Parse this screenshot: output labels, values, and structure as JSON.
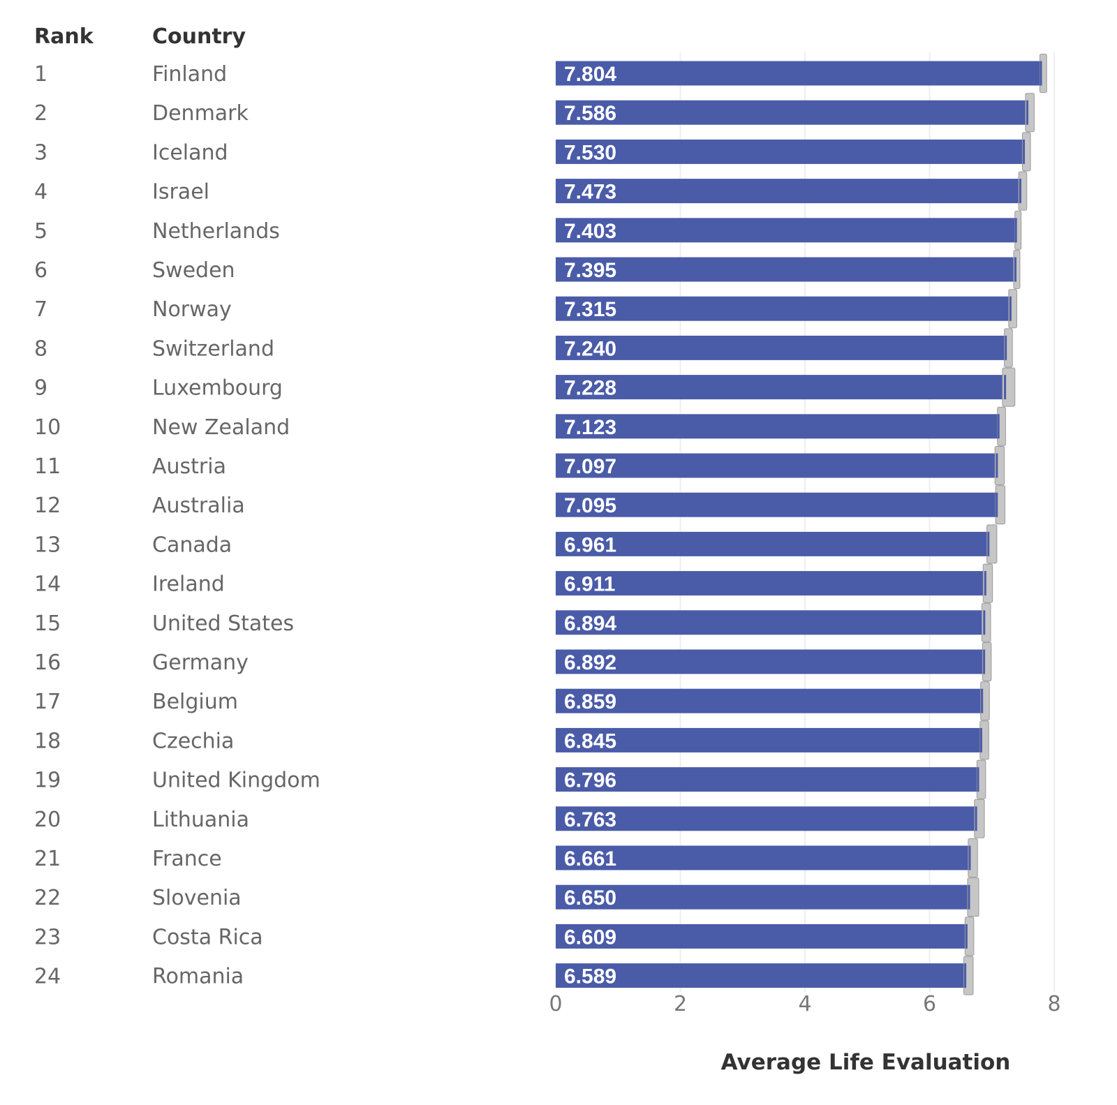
{
  "colors": {
    "bar": "#4a5ba8",
    "interval": "#c6c6c6",
    "text": "#666666",
    "header": "#333333"
  },
  "table": {
    "rank_header": "Rank",
    "country_header": "Country"
  },
  "chart_data": {
    "type": "bar",
    "orientation": "horizontal",
    "xlabel": "Average Life Evaluation",
    "xlim": [
      0,
      8
    ],
    "xticks": [
      0,
      2,
      4,
      6,
      8
    ],
    "grid": true,
    "ranks": [
      "1",
      "2",
      "3",
      "4",
      "5",
      "6",
      "7",
      "8",
      "9",
      "10",
      "11",
      "12",
      "13",
      "14",
      "15",
      "16",
      "17",
      "18",
      "19",
      "20",
      "21",
      "22",
      "23",
      "24"
    ],
    "categories": [
      "Finland",
      "Denmark",
      "Iceland",
      "Israel",
      "Netherlands",
      "Sweden",
      "Norway",
      "Switzerland",
      "Luxembourg",
      "New Zealand",
      "Austria",
      "Australia",
      "Canada",
      "Ireland",
      "United States",
      "Germany",
      "Belgium",
      "Czechia",
      "United Kingdom",
      "Lithuania",
      "France",
      "Slovenia",
      "Costa Rica",
      "Romania"
    ],
    "values": [
      7.804,
      7.586,
      7.53,
      7.473,
      7.403,
      7.395,
      7.315,
      7.24,
      7.228,
      7.123,
      7.097,
      7.095,
      6.961,
      6.911,
      6.894,
      6.892,
      6.859,
      6.845,
      6.796,
      6.763,
      6.661,
      6.65,
      6.609,
      6.589
    ],
    "value_labels": [
      "7.804",
      "7.586",
      "7.530",
      "7.473",
      "7.403",
      "7.395",
      "7.315",
      "7.240",
      "7.228",
      "7.123",
      "7.097",
      "7.095",
      "6.961",
      "6.911",
      "6.894",
      "6.892",
      "6.859",
      "6.845",
      "6.796",
      "6.763",
      "6.661",
      "6.650",
      "6.609",
      "6.589"
    ],
    "interval_low": [
      7.77,
      7.54,
      7.49,
      7.43,
      7.37,
      7.35,
      7.27,
      7.2,
      7.17,
      7.09,
      7.05,
      7.06,
      6.92,
      6.86,
      6.84,
      6.85,
      6.82,
      6.81,
      6.76,
      6.72,
      6.62,
      6.61,
      6.57,
      6.55
    ],
    "interval_high": [
      7.88,
      7.68,
      7.62,
      7.56,
      7.47,
      7.45,
      7.4,
      7.33,
      7.37,
      7.22,
      7.2,
      7.21,
      7.08,
      7.01,
      6.98,
      6.99,
      6.96,
      6.95,
      6.9,
      6.88,
      6.77,
      6.79,
      6.71,
      6.7
    ]
  }
}
